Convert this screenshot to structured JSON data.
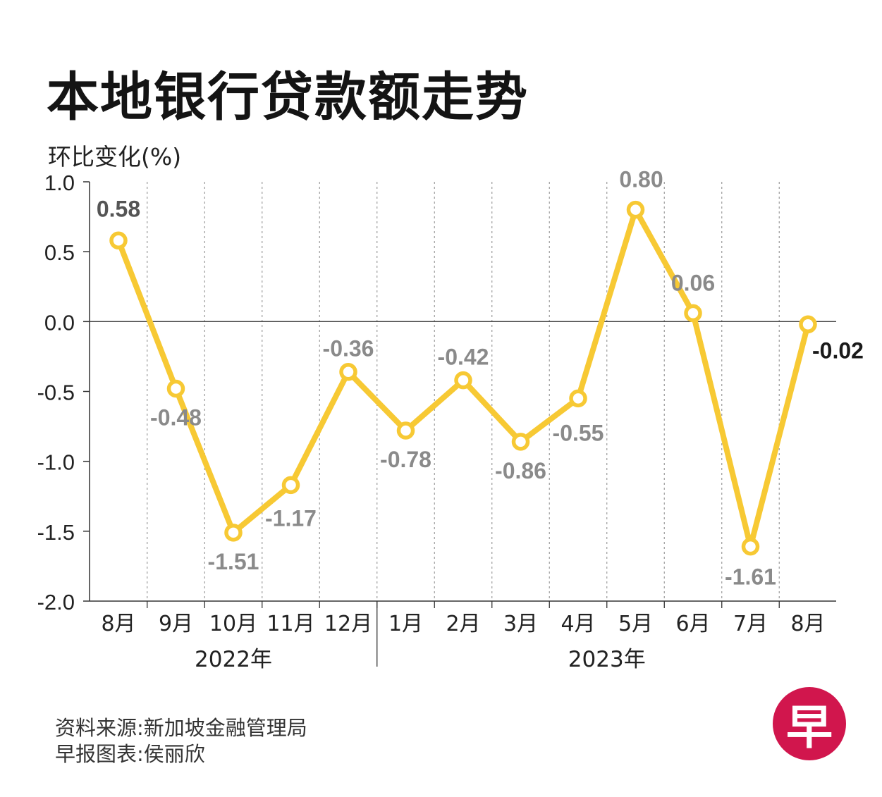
{
  "title": "本地银行贷款额走势",
  "ylabel": "环比变化(%)",
  "source": "资料来源:新加坡金融管理局",
  "credit": "早报图表:侯丽欣",
  "logo": {
    "text": "早",
    "color": "#d1164d"
  },
  "colors": {
    "line": "#f7c934",
    "label_gray": "#8a8a8a",
    "label_dark": "#555555",
    "label_black": "#1a1a1a"
  },
  "chart_data": {
    "type": "line",
    "categories": [
      "8月",
      "9月",
      "10月",
      "11月",
      "12月",
      "1月",
      "2月",
      "3月",
      "4月",
      "5月",
      "6月",
      "7月",
      "8月"
    ],
    "year_groups": [
      {
        "label": "2022年",
        "start": 0,
        "end": 4
      },
      {
        "label": "2023年",
        "start": 5,
        "end": 12
      }
    ],
    "series": [
      {
        "values": [
          0.58,
          -0.48,
          -1.51,
          -1.17,
          -0.36,
          -0.78,
          -0.42,
          -0.86,
          -0.55,
          0.8,
          0.06,
          -1.61,
          -0.02
        ]
      }
    ],
    "data_labels": [
      "0.58",
      "-0.48",
      "-1.51",
      "-1.17",
      "-0.36",
      "-0.78",
      "-0.42",
      "-0.86",
      "-0.55",
      "0.80",
      "0.06",
      "-1.61",
      "-0.02"
    ],
    "ylim": [
      -2.0,
      1.0
    ],
    "yticks": [
      "1.0",
      "0.5",
      "0.0",
      "-0.5",
      "-1.0",
      "-1.5",
      "-2.0"
    ],
    "grid": "vertical dotted",
    "legend": "none"
  }
}
